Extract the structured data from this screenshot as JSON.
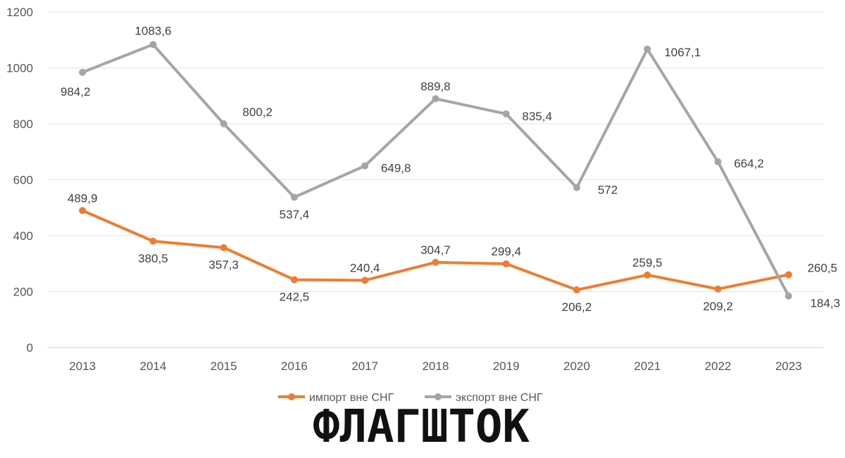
{
  "chart_data": {
    "type": "line",
    "categories": [
      "2013",
      "2014",
      "2015",
      "2016",
      "2017",
      "2018",
      "2019",
      "2020",
      "2021",
      "2022",
      "2023"
    ],
    "series": [
      {
        "name": "импорт вне СНГ",
        "values": [
          489.9,
          380.5,
          357.3,
          242.5,
          240.4,
          304.7,
          299.4,
          206.2,
          259.5,
          209.2,
          260.5
        ],
        "labels": [
          "489,9",
          "380,5",
          "357,3",
          "242,5",
          "240,4",
          "304,7",
          "299,4",
          "206,2",
          "259,5",
          "209,2",
          "260,5"
        ],
        "color": "#ED7D31"
      },
      {
        "name": "экспорт вне СНГ",
        "values": [
          984.2,
          1083.6,
          800.2,
          537.4,
          649.8,
          889.8,
          835.4,
          572,
          1067.1,
          664.2,
          184.3
        ],
        "labels": [
          "984,2",
          "1083,6",
          "800,2",
          "537,4",
          "649,8",
          "889,8",
          "835,4",
          "572",
          "1067,1",
          "664,2",
          "184,3"
        ],
        "color": "#A5A5A5"
      }
    ],
    "yticks": [
      "0",
      "200",
      "400",
      "600",
      "800",
      "1000",
      "1200"
    ],
    "ylim": [
      0,
      1200
    ],
    "grid": true,
    "legend_position": "bottom-center"
  },
  "watermark": {
    "text": "ФЛАГШТОК",
    "color": "#111111",
    "outline": "#ffffff"
  }
}
